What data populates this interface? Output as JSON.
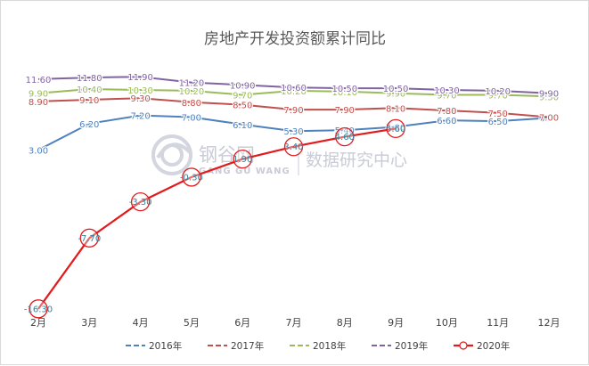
{
  "chart_data": {
    "type": "line",
    "title": "房地产开发投资额累计同比",
    "categories": [
      "2月",
      "3月",
      "4月",
      "5月",
      "6月",
      "7月",
      "8月",
      "9月",
      "10月",
      "11月",
      "12月"
    ],
    "series": [
      {
        "name": "2016年",
        "color": "#4f81bd",
        "values": [
          3.0,
          6.2,
          7.2,
          7.0,
          6.1,
          5.3,
          5.4,
          5.8,
          6.6,
          6.5,
          6.9
        ],
        "labels": [
          "3.00",
          "6.20",
          "7.20",
          "7.00",
          "6.10",
          "5.30",
          "5.40",
          "5.80",
          "6.60",
          "6.50",
          "6.90"
        ]
      },
      {
        "name": "2017年",
        "color": "#c0504d",
        "values": [
          8.9,
          9.1,
          9.3,
          8.8,
          8.5,
          7.9,
          7.9,
          8.1,
          7.8,
          7.5,
          7.0
        ],
        "labels": [
          "8.90",
          "9.10",
          "9.30",
          "8.80",
          "8.50",
          "7.90",
          "7.90",
          "8.10",
          "7.80",
          "7.50",
          "7.00"
        ]
      },
      {
        "name": "2018年",
        "color": "#9bbb59",
        "values": [
          9.9,
          10.4,
          10.3,
          10.2,
          9.7,
          10.2,
          10.1,
          9.9,
          9.7,
          9.7,
          9.5
        ],
        "labels": [
          "9.90",
          "10.40",
          "10.30",
          "10.20",
          "9.70",
          "10.20",
          "10.10",
          "9.90",
          "9.70",
          "9.70",
          "9.50"
        ]
      },
      {
        "name": "2019年",
        "color": "#8064a2",
        "values": [
          11.6,
          11.8,
          11.9,
          11.2,
          10.9,
          10.6,
          10.5,
          10.5,
          10.3,
          10.2,
          9.9
        ],
        "labels": [
          "11.60",
          "11.80",
          "11.90",
          "11.20",
          "10.90",
          "10.60",
          "10.50",
          "10.50",
          "10.30",
          "10.20",
          "9.90"
        ]
      },
      {
        "name": "2020年",
        "color": "#e31a1c",
        "values": [
          -16.3,
          -7.7,
          -3.3,
          -0.3,
          1.9,
          3.4,
          4.6,
          5.6,
          null,
          null,
          null
        ],
        "labels": [
          "-16.30",
          "-7.70",
          "-3.30",
          "-0.30",
          "1.90",
          "3.40",
          "4.60",
          "5.60",
          null,
          null,
          null
        ]
      }
    ],
    "ylim": [
      -20,
      13
    ],
    "grid": false,
    "legend_position": "bottom"
  },
  "watermark": {
    "cn": "钢谷网",
    "en": "GANG GU WANG",
    "tagline": "数据研究中心"
  }
}
